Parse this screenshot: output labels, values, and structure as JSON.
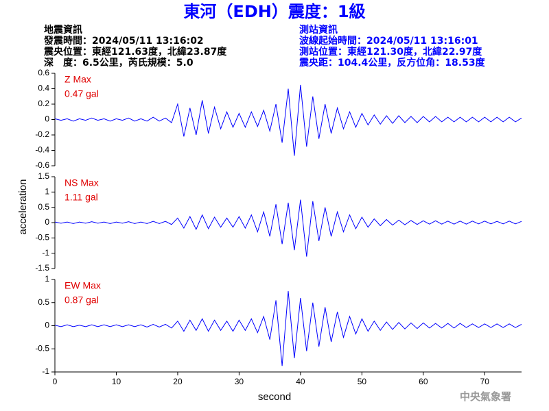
{
  "title": "東河（EDH）震度：1級",
  "info_left": [
    "地震資訊",
    "發震時間：2024/05/11 13:16:02",
    "震央位置：東經121.63度，北緯23.87度",
    "深　度：6.5公里，芮氏規模：5.0"
  ],
  "info_right": [
    "測站資訊",
    "波線起始時間：2024/05/11 13:16:01",
    "測站位置：東經121.30度，北緯22.97度",
    "震央距：104.4公里，反方位角：18.53度"
  ],
  "ylabel": "acceleration",
  "xlabel": "second",
  "footer": "中央氣象署",
  "chart_data": [
    {
      "type": "line",
      "label": "Z Max",
      "max_label": "0.47 gal",
      "color": "#0000ff",
      "label_color": "#e00000",
      "x": [
        0,
        1,
        2,
        3,
        4,
        5,
        6,
        7,
        8,
        9,
        10,
        11,
        12,
        13,
        14,
        15,
        16,
        17,
        18,
        19,
        20,
        21,
        22,
        23,
        24,
        25,
        26,
        27,
        28,
        29,
        30,
        31,
        32,
        33,
        34,
        35,
        36,
        37,
        38,
        39,
        40,
        41,
        42,
        43,
        44,
        45,
        46,
        47,
        48,
        49,
        50,
        51,
        52,
        53,
        54,
        55,
        56,
        57,
        58,
        59,
        60,
        61,
        62,
        63,
        64,
        65,
        66,
        67,
        68,
        69,
        70,
        71,
        72,
        73,
        74,
        75,
        76
      ],
      "values": [
        0.01,
        -0.01,
        0.01,
        -0.02,
        0.01,
        -0.01,
        0.02,
        -0.01,
        0.01,
        -0.02,
        0.01,
        -0.01,
        0.02,
        -0.02,
        0.01,
        -0.02,
        0.03,
        -0.02,
        0.02,
        -0.04,
        0.2,
        -0.22,
        0.15,
        -0.2,
        0.25,
        -0.18,
        0.16,
        -0.12,
        0.1,
        -0.1,
        0.08,
        -0.1,
        0.1,
        -0.09,
        0.12,
        -0.15,
        0.2,
        -0.3,
        0.4,
        -0.47,
        0.45,
        -0.35,
        0.3,
        -0.25,
        0.2,
        -0.18,
        0.15,
        -0.12,
        0.1,
        -0.1,
        0.08,
        -0.07,
        0.06,
        -0.06,
        0.05,
        -0.05,
        0.05,
        -0.04,
        0.04,
        -0.04,
        0.04,
        -0.03,
        0.04,
        -0.03,
        0.03,
        -0.03,
        0.03,
        -0.03,
        0.03,
        -0.03,
        0.03,
        -0.03,
        0.03,
        -0.03,
        0.03,
        -0.03,
        0.02
      ],
      "xlim": [
        0,
        76
      ],
      "ylim": [
        -0.6,
        0.6
      ],
      "yticks": [
        -0.6,
        -0.4,
        -0.2,
        0,
        0.2,
        0.4,
        0.6
      ]
    },
    {
      "type": "line",
      "label": "NS Max",
      "max_label": "1.11 gal",
      "color": "#0000ff",
      "label_color": "#e00000",
      "x": [
        0,
        1,
        2,
        3,
        4,
        5,
        6,
        7,
        8,
        9,
        10,
        11,
        12,
        13,
        14,
        15,
        16,
        17,
        18,
        19,
        20,
        21,
        22,
        23,
        24,
        25,
        26,
        27,
        28,
        29,
        30,
        31,
        32,
        33,
        34,
        35,
        36,
        37,
        38,
        39,
        40,
        41,
        42,
        43,
        44,
        45,
        46,
        47,
        48,
        49,
        50,
        51,
        52,
        53,
        54,
        55,
        56,
        57,
        58,
        59,
        60,
        61,
        62,
        63,
        64,
        65,
        66,
        67,
        68,
        69,
        70,
        71,
        72,
        73,
        74,
        75,
        76
      ],
      "values": [
        0.02,
        -0.02,
        0.02,
        -0.03,
        0.02,
        -0.02,
        0.03,
        -0.02,
        0.02,
        -0.03,
        0.02,
        -0.02,
        0.03,
        -0.03,
        0.02,
        -0.03,
        0.04,
        -0.03,
        0.04,
        -0.06,
        0.15,
        -0.18,
        0.2,
        -0.22,
        0.25,
        -0.2,
        0.18,
        -0.15,
        0.15,
        -0.15,
        0.2,
        -0.18,
        0.25,
        -0.3,
        0.35,
        -0.45,
        0.6,
        -0.7,
        0.65,
        -0.9,
        0.75,
        -1.11,
        0.7,
        -0.6,
        0.5,
        -0.45,
        0.35,
        -0.3,
        0.25,
        -0.2,
        0.18,
        -0.15,
        0.12,
        -0.1,
        0.1,
        -0.08,
        0.08,
        -0.07,
        0.07,
        -0.06,
        0.06,
        -0.05,
        0.06,
        -0.05,
        0.05,
        -0.05,
        0.05,
        -0.05,
        0.05,
        -0.04,
        0.05,
        -0.04,
        0.04,
        -0.04,
        0.05,
        -0.04,
        0.04
      ],
      "xlim": [
        0,
        76
      ],
      "ylim": [
        -1.5,
        1.5
      ],
      "yticks": [
        -1.5,
        -1,
        -0.5,
        0,
        0.5,
        1,
        1.5
      ]
    },
    {
      "type": "line",
      "label": "EW Max",
      "max_label": "0.87 gal",
      "color": "#0000ff",
      "label_color": "#e00000",
      "x": [
        0,
        1,
        2,
        3,
        4,
        5,
        6,
        7,
        8,
        9,
        10,
        11,
        12,
        13,
        14,
        15,
        16,
        17,
        18,
        19,
        20,
        21,
        22,
        23,
        24,
        25,
        26,
        27,
        28,
        29,
        30,
        31,
        32,
        33,
        34,
        35,
        36,
        37,
        38,
        39,
        40,
        41,
        42,
        43,
        44,
        45,
        46,
        47,
        48,
        49,
        50,
        51,
        52,
        53,
        54,
        55,
        56,
        57,
        58,
        59,
        60,
        61,
        62,
        63,
        64,
        65,
        66,
        67,
        68,
        69,
        70,
        71,
        72,
        73,
        74,
        75,
        76
      ],
      "values": [
        0.01,
        -0.02,
        0.02,
        -0.02,
        0.01,
        -0.02,
        0.02,
        -0.02,
        0.02,
        -0.02,
        0.02,
        -0.02,
        0.02,
        -0.02,
        0.02,
        -0.03,
        0.03,
        -0.03,
        0.03,
        -0.05,
        0.1,
        -0.12,
        0.12,
        -0.1,
        0.15,
        -0.12,
        0.12,
        -0.1,
        0.1,
        -0.12,
        0.12,
        -0.1,
        0.15,
        -0.15,
        0.2,
        -0.3,
        0.55,
        -0.87,
        0.75,
        -0.7,
        0.6,
        -0.55,
        0.5,
        -0.45,
        0.4,
        -0.35,
        0.3,
        -0.25,
        0.2,
        -0.18,
        0.15,
        -0.12,
        0.1,
        -0.1,
        0.08,
        -0.08,
        0.07,
        -0.07,
        0.06,
        -0.06,
        0.06,
        -0.05,
        0.05,
        -0.05,
        0.05,
        -0.05,
        0.05,
        -0.04,
        0.04,
        -0.04,
        0.04,
        -0.04,
        0.04,
        -0.04,
        0.04,
        -0.04,
        0.03
      ],
      "xlim": [
        0,
        76
      ],
      "ylim": [
        -1,
        1
      ],
      "yticks": [
        -1,
        -0.5,
        0,
        0.5,
        1
      ],
      "xticks": [
        0,
        10,
        20,
        30,
        40,
        50,
        60,
        70
      ]
    }
  ]
}
